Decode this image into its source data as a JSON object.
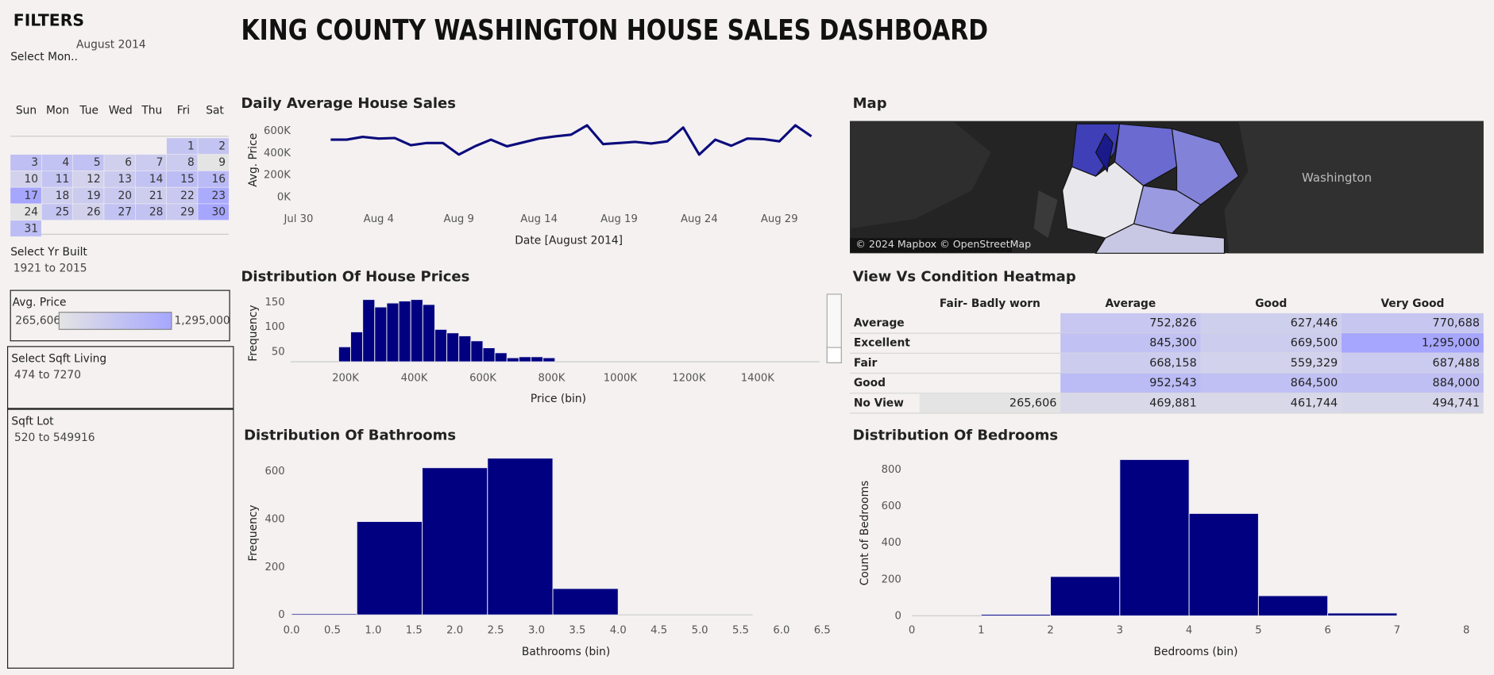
{
  "title": "KING COUNTY WASHINGTON HOUSE SALES DASHBOARD",
  "filters": {
    "heading": "FILTERS",
    "month_label": "Select Mon..",
    "month_value": "August 2014",
    "calendar": {
      "weekdays": [
        "Sun",
        "Mon",
        "Tue",
        "Wed",
        "Thu",
        "Fri",
        "Sat"
      ],
      "weeks": [
        [
          null,
          null,
          null,
          null,
          null,
          1,
          2
        ],
        [
          3,
          4,
          5,
          6,
          7,
          8,
          9
        ],
        [
          10,
          11,
          12,
          13,
          14,
          15,
          16
        ],
        [
          17,
          18,
          19,
          20,
          21,
          22,
          23
        ],
        [
          24,
          25,
          26,
          27,
          28,
          29,
          30
        ],
        [
          31,
          null,
          null,
          null,
          null,
          null,
          null
        ]
      ]
    },
    "yr_built": {
      "label": "Select Yr Built",
      "value": "1921 to 2015"
    },
    "avg_price": {
      "label": "Avg. Price",
      "min": "265,606",
      "max": "1,295,000",
      "colors": [
        "#e4e4e4",
        "#a6a6ff"
      ]
    },
    "sqft_living": {
      "label": "Select Sqft Living",
      "value": "474 to 7270"
    },
    "sqft_lot": {
      "label": "Sqft Lot",
      "value": "520 to 549916"
    }
  },
  "chart_data": [
    {
      "type": "line",
      "title": "Daily Average House Sales",
      "x_label": "Date [August 2014]",
      "y_label": "Avg. Price",
      "x": [
        1,
        2,
        3,
        4,
        5,
        6,
        7,
        8,
        9,
        10,
        11,
        12,
        13,
        14,
        15,
        16,
        17,
        18,
        19,
        20,
        21,
        22,
        23,
        24,
        25,
        26,
        27,
        28,
        29,
        30,
        31
      ],
      "values": [
        520000,
        520000,
        545000,
        530000,
        535000,
        470000,
        490000,
        490000,
        385000,
        460000,
        520000,
        460000,
        495000,
        530000,
        550000,
        565000,
        650000,
        480000,
        490000,
        500000,
        485000,
        505000,
        630000,
        385000,
        520000,
        465000,
        530000,
        525000,
        505000,
        650000,
        550000
      ],
      "color": "#0b0b7c",
      "xlim": [
        -1.5,
        31.5
      ],
      "xticks": [
        {
          "value": -1,
          "label": "Jul 30"
        },
        {
          "value": 4,
          "label": "Aug 4"
        },
        {
          "value": 9,
          "label": "Aug 9"
        },
        {
          "value": 14,
          "label": "Aug 14"
        },
        {
          "value": 19,
          "label": "Aug 19"
        },
        {
          "value": 24,
          "label": "Aug 24"
        },
        {
          "value": 29,
          "label": "Aug 29"
        }
      ],
      "ylim": [
        0,
        680000
      ],
      "yticks": [
        {
          "value": 0,
          "label": "0K"
        },
        {
          "value": 200000,
          "label": "200K"
        },
        {
          "value": 400000,
          "label": "400K"
        },
        {
          "value": 600000,
          "label": "600K"
        }
      ]
    },
    {
      "type": "histogram",
      "title": "Distribution Of House Prices",
      "x_label": "Price (bin)",
      "y_label": "Frequency",
      "bins": [
        180000,
        215000,
        250000,
        285000,
        320000,
        355000,
        390000,
        425000,
        460000,
        495000,
        530000,
        565000,
        600000,
        635000,
        670000,
        705000,
        740000,
        775000,
        810000
      ],
      "values": [
        60,
        90,
        155,
        140,
        148,
        152,
        155,
        145,
        95,
        88,
        82,
        72,
        58,
        48,
        38,
        40,
        40,
        38
      ],
      "color": "#000080",
      "xlim": [
        40000,
        1580000
      ],
      "xticks": [
        {
          "value": 200000,
          "label": "200K"
        },
        {
          "value": 400000,
          "label": "400K"
        },
        {
          "value": 600000,
          "label": "600K"
        },
        {
          "value": 800000,
          "label": "800K"
        },
        {
          "value": 1000000,
          "label": "1000K"
        },
        {
          "value": 1200000,
          "label": "1200K"
        },
        {
          "value": 1400000,
          "label": "1400K"
        }
      ],
      "ylim": [
        30,
        160
      ],
      "yticks": [
        50,
        100,
        150
      ]
    },
    {
      "type": "histogram",
      "title": "Distribution Of Bathrooms",
      "x_label": "Bathrooms (bin)",
      "y_label": "Frequency",
      "bins": [
        0,
        0.8,
        1.6,
        2.4,
        3.2,
        4.0
      ],
      "values": [
        5,
        390,
        615,
        655,
        110
      ],
      "color": "#000080",
      "xlim": [
        0,
        6.5
      ],
      "xticks": [
        {
          "value": 0,
          "label": "0.0"
        },
        0.5,
        {
          "value": 1,
          "label": "1.0"
        },
        1.5,
        {
          "value": 2,
          "label": "2.0"
        },
        2.5,
        {
          "value": 3,
          "label": "3.0"
        },
        3.5,
        {
          "value": 4,
          "label": "4.0"
        },
        4.5,
        {
          "value": 5,
          "label": "5.0"
        },
        5.5,
        {
          "value": 6,
          "label": "6.0"
        },
        6.5
      ],
      "ylim": [
        0,
        700
      ],
      "yticks": [
        0,
        200,
        400,
        600
      ]
    },
    {
      "type": "histogram",
      "title": "Distribution Of Bedrooms",
      "x_label": "Bedrooms (bin)",
      "y_label": "Count of Bedrooms",
      "bins": [
        1,
        2,
        3,
        4,
        5,
        6,
        7
      ],
      "values": [
        8,
        215,
        855,
        560,
        110,
        15
      ],
      "color": "#000080",
      "xlim": [
        0,
        8
      ],
      "xticks": [
        0,
        1,
        2,
        3,
        4,
        5,
        6,
        7,
        8
      ],
      "ylim": [
        0,
        880
      ],
      "yticks": [
        0,
        200,
        400,
        600,
        800
      ]
    }
  ],
  "map": {
    "title": "Map",
    "label": "Washington",
    "credit": "© 2024 Mapbox © OpenStreetMap"
  },
  "heatmap": {
    "title": "View Vs Condition Heatmap",
    "columns": [
      "Fair- Badly worn",
      "Average",
      "Good",
      "Very Good"
    ],
    "rows": [
      {
        "label": "Average",
        "cells": [
          null,
          "752,826",
          "627,446",
          "770,688"
        ]
      },
      {
        "label": "Excellent",
        "cells": [
          null,
          "845,300",
          "669,500",
          "1,295,000"
        ]
      },
      {
        "label": "Fair",
        "cells": [
          null,
          "668,158",
          "559,329",
          "687,488"
        ]
      },
      {
        "label": "Good",
        "cells": [
          null,
          "952,543",
          "864,500",
          "884,000"
        ]
      },
      {
        "label": "No View",
        "cells": [
          "265,606",
          "469,881",
          "461,744",
          "494,741"
        ]
      }
    ]
  }
}
